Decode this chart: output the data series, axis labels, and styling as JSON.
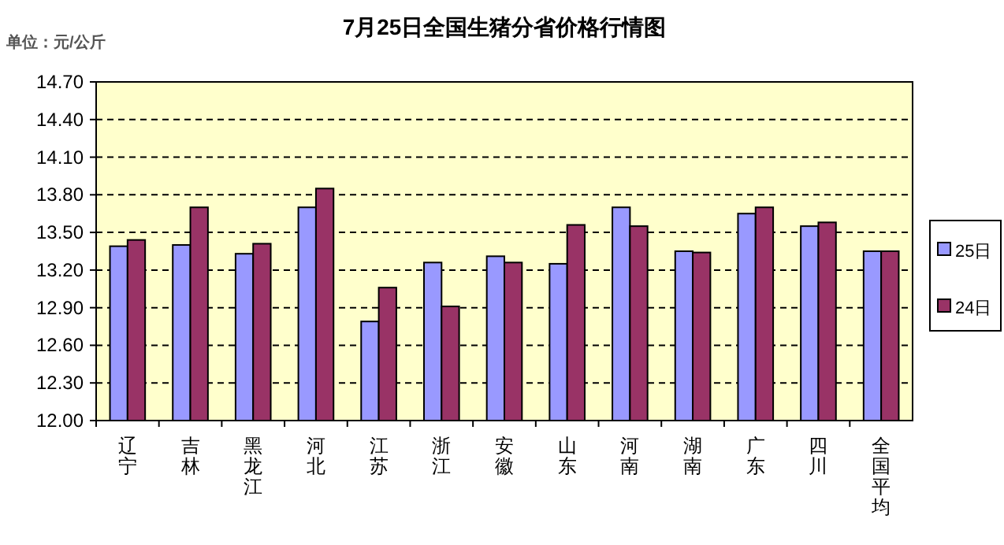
{
  "chart_data": {
    "type": "bar",
    "title": "7月25日全国生猪分省价格行情图",
    "ylabel": "单位：元/公斤",
    "categories": [
      "辽宁",
      "吉林",
      "黑龙江",
      "河北",
      "江苏",
      "浙江",
      "安徽",
      "山东",
      "河南",
      "湖南",
      "广东",
      "四川",
      "全国平均"
    ],
    "series": [
      {
        "name": "25日",
        "color": "#9999ff",
        "values": [
          13.39,
          13.4,
          13.33,
          13.7,
          12.79,
          13.26,
          13.31,
          13.25,
          13.7,
          13.35,
          13.65,
          13.55,
          13.35
        ]
      },
      {
        "name": "24日",
        "color": "#993366",
        "values": [
          13.44,
          13.7,
          13.41,
          13.85,
          13.06,
          12.91,
          13.26,
          13.56,
          13.55,
          13.34,
          13.7,
          13.58,
          13.35
        ]
      }
    ],
    "ylim": [
      12.0,
      14.7
    ],
    "yticks": [
      {
        "value": 12.0,
        "label": "12.00"
      },
      {
        "value": 12.3,
        "label": "12.30"
      },
      {
        "value": 12.6,
        "label": "12.60"
      },
      {
        "value": 12.9,
        "label": "12.90"
      },
      {
        "value": 13.2,
        "label": "13.20"
      },
      {
        "value": 13.5,
        "label": "13.50"
      },
      {
        "value": 13.8,
        "label": "13.80"
      },
      {
        "value": 14.1,
        "label": "14.10"
      },
      {
        "value": 14.4,
        "label": "14.40"
      },
      {
        "value": 14.7,
        "label": "14.70"
      }
    ],
    "grid": "y",
    "legend": "right"
  }
}
